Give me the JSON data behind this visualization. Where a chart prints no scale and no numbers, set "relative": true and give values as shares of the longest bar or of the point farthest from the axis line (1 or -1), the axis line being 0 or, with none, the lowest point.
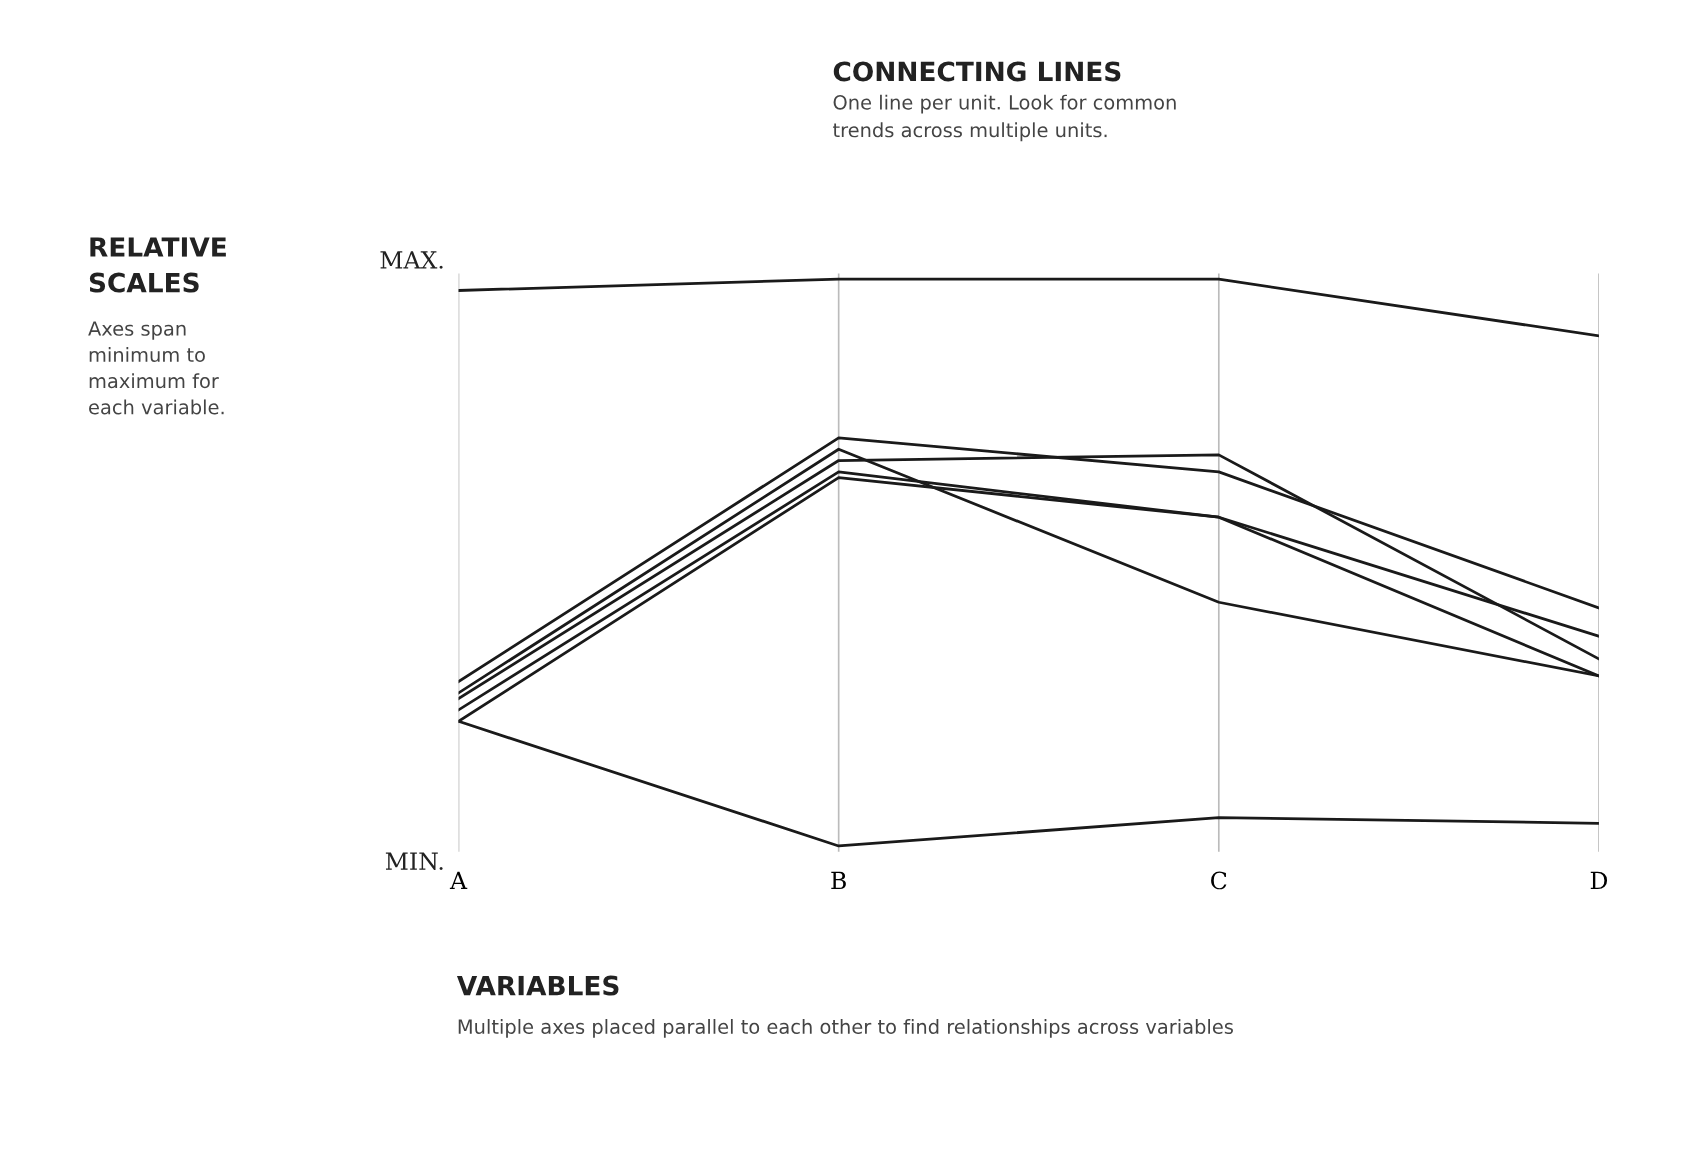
{
  "chart_data": {
    "type": "line",
    "title": "CONNECTING LINES",
    "subtitle": "One line per unit. Look for common\ntrends across multiple units.",
    "categories": [
      "A",
      "B",
      "C",
      "D"
    ],
    "relative": true,
    "series": [
      {
        "color": "#1a1a1a",
        "values": [
          0.98,
          1,
          1,
          0.9
        ]
      },
      {
        "color": "#1a1a1a",
        "values": [
          0.22,
          0,
          0.05,
          0.04
        ]
      },
      {
        "color": "#1a1a1a",
        "values": [
          0.29,
          0.72,
          0.66,
          0.42
        ]
      },
      {
        "color": "#1a1a1a",
        "values": [
          0.27,
          0.7,
          0.43,
          0.3
        ]
      },
      {
        "color": "#1a1a1a",
        "values": [
          0.26,
          0.68,
          0.69,
          0.33
        ]
      },
      {
        "color": "#1a1a1a",
        "values": [
          0.24,
          0.66,
          0.58,
          0.37
        ]
      },
      {
        "color": "#1a1a1a",
        "values": [
          0.22,
          0.65,
          0.58,
          0.3
        ]
      }
    ],
    "grid": "x",
    "marker": "none",
    "line_style": "solid",
    "annotations": [
      "RELATIVE\nSCALES",
      "Axes span\nminimum to\nmaximum for\neach variable.",
      "VARIABLES",
      "Multiple axes placed parallel to each other to find relationships across variables",
      "MAX.",
      "MIN."
    ]
  }
}
